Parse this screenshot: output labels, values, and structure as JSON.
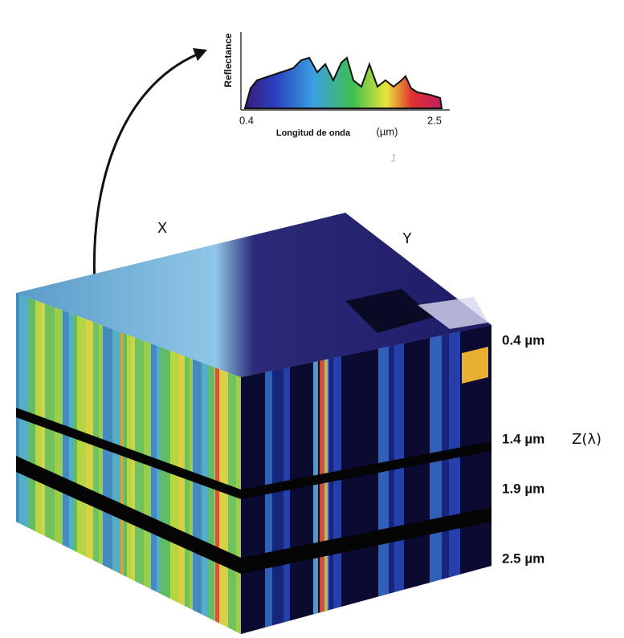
{
  "spectrum": {
    "y_axis_label": "Reflectance",
    "x_axis_label": "Longitud de onda",
    "x_unit": "(µm)",
    "x_min_label": "0.4",
    "x_max_label": "2.5",
    "annotation": "1"
  },
  "cube": {
    "x_label": "X",
    "y_label": "Y",
    "z_label": "Z(λ)",
    "band_labels": [
      "0.4 µm",
      "1.4 µm",
      "1.9 µm",
      "2.5 µm"
    ]
  }
}
